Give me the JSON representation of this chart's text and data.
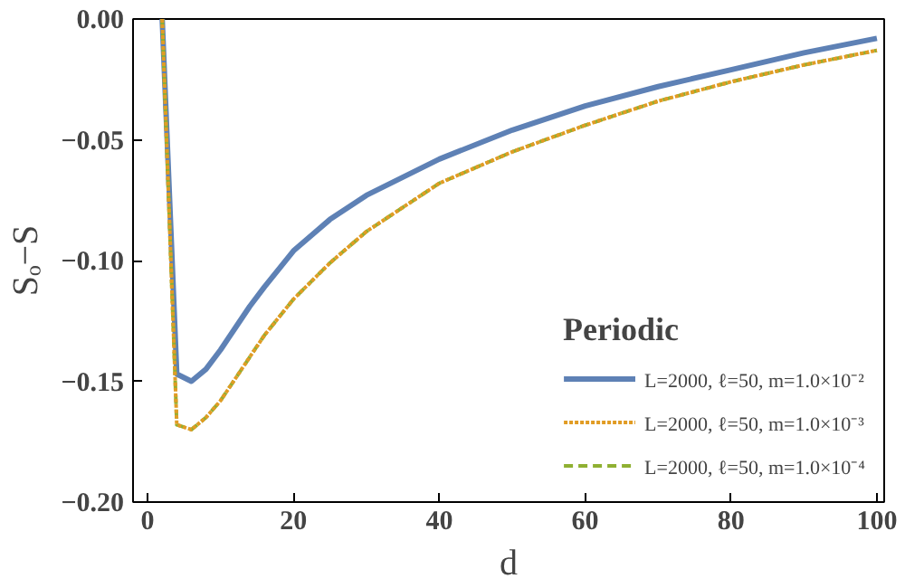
{
  "chart_data": {
    "type": "line",
    "xlabel": "d",
    "ylabel": "Sₒ−S",
    "legend_title": "Periodic",
    "legend": "bottom right",
    "grid": false,
    "xlim": [
      -2,
      101
    ],
    "ylim": [
      -0.2,
      0
    ],
    "xticks": [
      0,
      20,
      40,
      60,
      80,
      100
    ],
    "yticks": [
      {
        "value": -0.2,
        "label": "−0.20"
      },
      {
        "value": -0.15,
        "label": "−0.15"
      },
      {
        "value": -0.1,
        "label": "−0.10"
      },
      {
        "value": -0.05,
        "label": "−0.05"
      },
      {
        "value": 0,
        "label": "0.00"
      }
    ],
    "x": [
      2,
      4,
      6,
      8,
      10,
      12,
      14,
      16,
      20,
      25,
      30,
      40,
      50,
      60,
      70,
      80,
      90,
      100
    ],
    "series": [
      {
        "name": "L=2000, ℓ=50, m=1.0×10⁻²",
        "color": "#5e81b5",
        "line_style": "solid",
        "values": [
          0,
          -0.147,
          -0.15,
          -0.145,
          -0.137,
          -0.128,
          -0.119,
          -0.111,
          -0.096,
          -0.083,
          -0.073,
          -0.058,
          -0.046,
          -0.036,
          -0.028,
          -0.021,
          -0.014,
          -0.008
        ]
      },
      {
        "name": "L=2000, ℓ=50, m=1.0×10⁻³",
        "color": "#e19c24",
        "line_style": "dotted",
        "values": [
          0,
          -0.168,
          -0.17,
          -0.165,
          -0.158,
          -0.149,
          -0.14,
          -0.131,
          -0.116,
          -0.101,
          -0.088,
          -0.068,
          -0.055,
          -0.044,
          -0.034,
          -0.026,
          -0.019,
          -0.013
        ]
      },
      {
        "name": "L=2000, ℓ=50, m=1.0×10⁻⁴",
        "color": "#8fb032",
        "line_style": "dashed",
        "values": [
          0,
          -0.168,
          -0.17,
          -0.165,
          -0.158,
          -0.149,
          -0.14,
          -0.131,
          -0.116,
          -0.101,
          -0.088,
          -0.068,
          -0.055,
          -0.044,
          -0.034,
          -0.026,
          -0.019,
          -0.013
        ]
      }
    ]
  }
}
